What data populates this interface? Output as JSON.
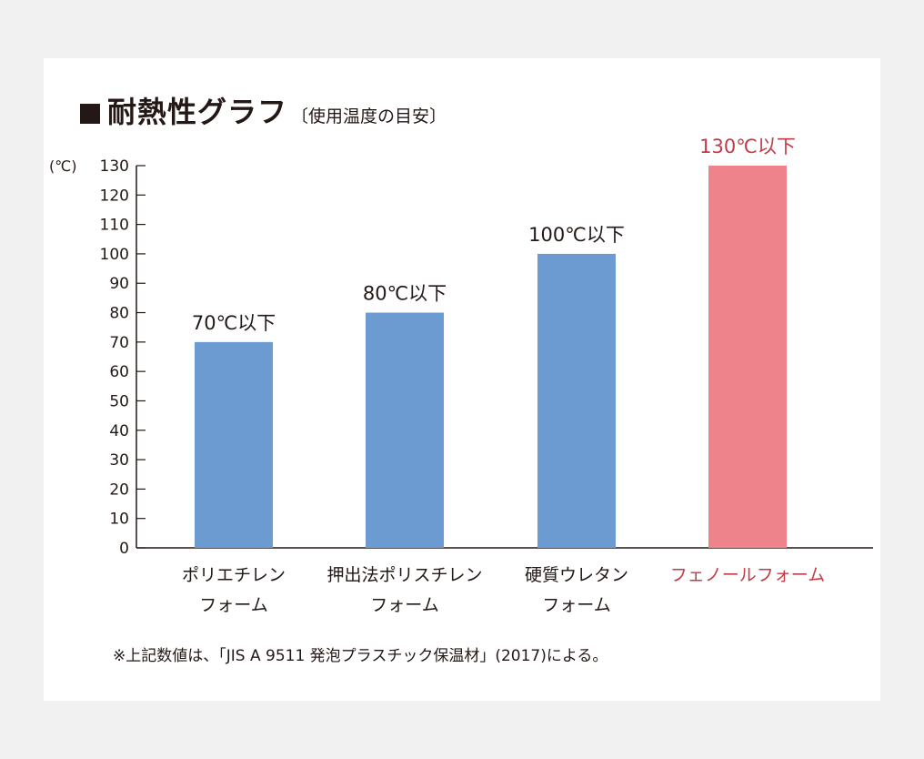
{
  "title": {
    "main": "耐熱性グラフ",
    "sub": "〔使用温度の目安〕"
  },
  "colors": {
    "normal_bar": "#6c9bd1",
    "highlight_bar": "#ef838c",
    "highlight_text": "#c23b47",
    "text": "#231815"
  },
  "chart_data": {
    "type": "bar",
    "title": "耐熱性グラフ〔使用温度の目安〕",
    "ylabel": "(℃)",
    "ylim": [
      0,
      130
    ],
    "yticks": [
      0,
      10,
      20,
      30,
      40,
      50,
      60,
      70,
      80,
      90,
      100,
      110,
      120,
      130
    ],
    "grid": false,
    "categories": [
      [
        "ポリエチレン",
        "フォーム"
      ],
      [
        "押出法ポリスチレン",
        "フォーム"
      ],
      [
        "硬質ウレタン",
        "フォーム"
      ],
      [
        "フェノールフォーム"
      ]
    ],
    "values": [
      70,
      80,
      100,
      130
    ],
    "data_labels": [
      "70℃以下",
      "80℃以下",
      "100℃以下",
      "130℃以下"
    ],
    "highlight_index": 3
  },
  "footnote": "※上記数値は、「JIS A 9511 発泡プラスチック保温材」(2017)による。"
}
